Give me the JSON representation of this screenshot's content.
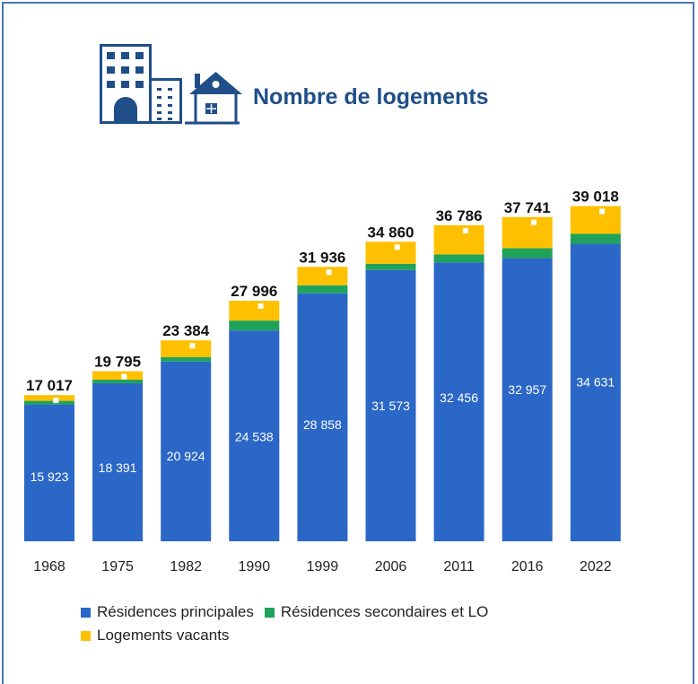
{
  "header": {
    "title": "Nombre de logements",
    "icon": "buildings-and-house-icon"
  },
  "colors": {
    "principales": "#2b67c6",
    "secondaires": "#1fa35a",
    "vacants": "#ffc000",
    "title": "#1f4e89",
    "frame": "#4a76b5",
    "marker": "#ffffff"
  },
  "chart_data": {
    "type": "bar",
    "stacked": true,
    "title": "Nombre de logements",
    "xlabel": "",
    "ylabel": "",
    "ylim": [
      0,
      63000
    ],
    "grid": false,
    "legend_position": "bottom",
    "categories": [
      "1968",
      "1975",
      "1982",
      "1990",
      "1999",
      "2006",
      "2011",
      "2016",
      "2022"
    ],
    "totals": [
      "17 017",
      "19 795",
      "23 384",
      "27 996",
      "31 936",
      "34 860",
      "36 786",
      "37 741",
      "39 018"
    ],
    "total_values": [
      17017,
      19795,
      23384,
      27996,
      31936,
      34860,
      36786,
      37741,
      39018
    ],
    "principal_labels": [
      "15 923",
      "18 391",
      "20 924",
      "24 538",
      "28 858",
      "31 573",
      "32 456",
      "32 957",
      "34 631"
    ],
    "series": [
      {
        "name": "Résidences principales",
        "key": "principales",
        "values": [
          15923,
          18391,
          20924,
          24538,
          28858,
          31573,
          32456,
          32957,
          34631
        ]
      },
      {
        "name": "Résidences secondaires et LO",
        "key": "secondaires",
        "values": [
          420,
          420,
          520,
          1150,
          940,
          730,
          940,
          1150,
          1150
        ]
      },
      {
        "name": "Logements vacants",
        "key": "vacants",
        "values": [
          674,
          984,
          1940,
          2308,
          2138,
          2557,
          3390,
          3634,
          3237
        ]
      }
    ]
  },
  "legend": {
    "items": [
      {
        "label": "Résidences principales",
        "key": "principales"
      },
      {
        "label": "Résidences secondaires et LO",
        "key": "secondaires"
      },
      {
        "label": "Logements vacants",
        "key": "vacants"
      }
    ]
  }
}
